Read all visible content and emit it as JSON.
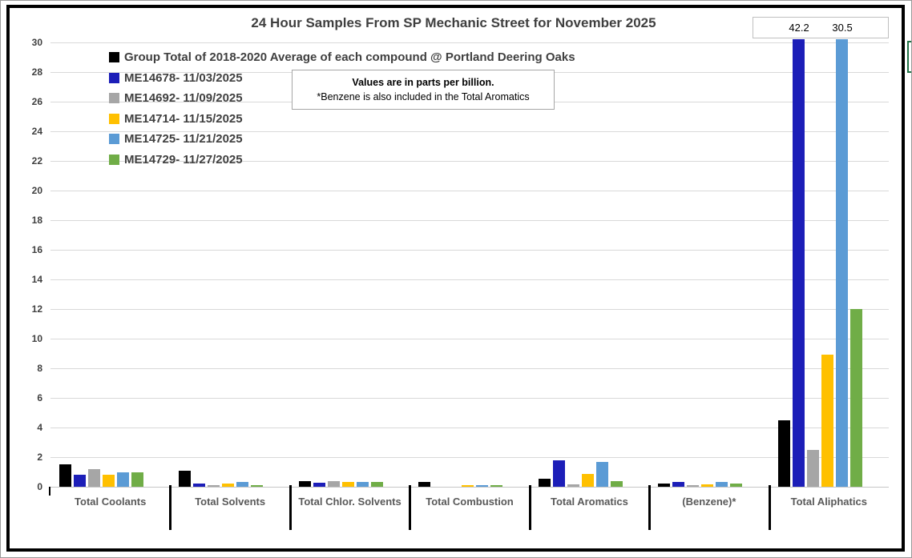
{
  "title": "24 Hour Samples From SP Mechanic Street for November 2025",
  "note_box": {
    "line1": "Values are in parts per billion.",
    "line2": "*Benzene is also included in the Total Aromatics"
  },
  "colors": {
    "average": "#000000",
    "sample1": "#1c1eb8",
    "sample2": "#a6a6a6",
    "sample3": "#ffc000",
    "sample4": "#5b9bd5",
    "sample5": "#70ad47",
    "gridline": "#d9d9d9",
    "frame": "#000000",
    "text_dark": "#404040",
    "text_category": "#595959",
    "edge_marker": "#217346"
  },
  "chart_data": {
    "type": "bar",
    "title": "24 Hour Samples From SP Mechanic Street for November 2025",
    "categories": [
      "Total Coolants",
      "Total Solvents",
      "Total Chlor. Solvents",
      "Total Combustion",
      "Total Aromatics",
      "(Benzene)*",
      "Total Aliphatics"
    ],
    "series": [
      {
        "name": "Group Total of 2018-2020 Average of each compound @ Portland Deering Oaks",
        "color": "#000000",
        "values": [
          1.5,
          1.1,
          0.4,
          0.3,
          0.55,
          0.2,
          4.5
        ]
      },
      {
        "name": "ME14678- 11/03/2025",
        "color": "#1c1eb8",
        "values": [
          0.8,
          0.2,
          0.25,
          0,
          1.8,
          0.3,
          42.2
        ]
      },
      {
        "name": "ME14692- 11/09/2025",
        "color": "#a6a6a6",
        "values": [
          1.2,
          0.1,
          0.4,
          0,
          0.15,
          0.1,
          2.5
        ]
      },
      {
        "name": "ME14714- 11/15/2025",
        "color": "#ffc000",
        "values": [
          0.8,
          0.2,
          0.35,
          0.1,
          0.85,
          0.15,
          8.9
        ]
      },
      {
        "name": "ME14725- 11/21/2025",
        "color": "#5b9bd5",
        "values": [
          1.0,
          0.35,
          0.35,
          0.1,
          1.7,
          0.35,
          30.5
        ]
      },
      {
        "name": "ME14729- 11/27/2025",
        "color": "#70ad47",
        "values": [
          0.95,
          0.1,
          0.3,
          0.1,
          0.4,
          0.2,
          12.0
        ]
      }
    ],
    "xlabel": "",
    "ylabel": "",
    "ylim": [
      0,
      30
    ],
    "ytick_step": 2,
    "grid": true,
    "legend_position": "top-left",
    "overflow_labels": [
      {
        "series": "ME14678- 11/03/2025",
        "category": "Total Aliphatics",
        "value": 42.2,
        "label": "42.2"
      },
      {
        "series": "ME14725- 11/21/2025",
        "category": "Total Aliphatics",
        "value": 30.5,
        "label": "30.5"
      }
    ],
    "units_note": "Values are in parts per billion.",
    "footnote": "*Benzene is also included in the Total Aromatics"
  }
}
